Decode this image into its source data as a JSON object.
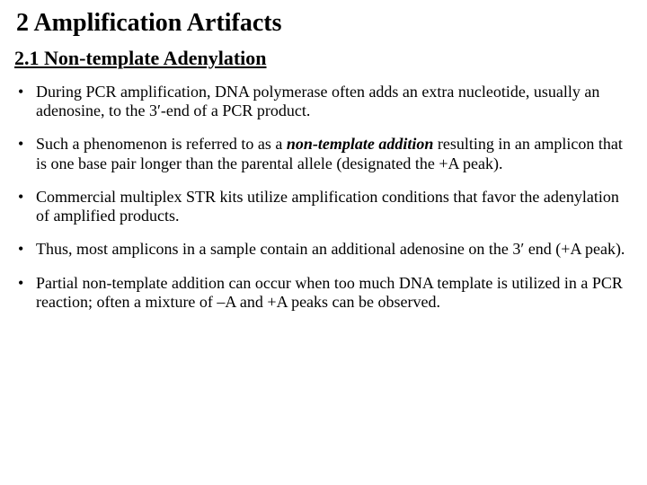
{
  "heading": "2 Amplification Artifacts",
  "subheading": "2.1 Non-template Adenylation",
  "bullets": [
    {
      "segments": [
        {
          "text": "During PCR amplification, DNA polymerase often adds an extra nucleotide, usually an adenosine, to the 3′-end of a PCR product."
        }
      ]
    },
    {
      "segments": [
        {
          "text": "Such a phenomenon is referred to as a "
        },
        {
          "text": "non-template addition",
          "bi": true
        },
        {
          "text": " resulting in an amplicon that is one base pair longer than the parental allele (designated the +A peak)."
        }
      ]
    },
    {
      "segments": [
        {
          "text": "Commercial multiplex STR kits utilize amplification conditions that favor the adenylation of amplified products."
        }
      ]
    },
    {
      "segments": [
        {
          "text": "Thus, most amplicons in a sample contain an additional adenosine on the 3′ end (+A peak)."
        }
      ]
    },
    {
      "segments": [
        {
          "text": "Partial non-template addition can occur when too much DNA template is utilized in a PCR reaction; often a mixture of –A and +A peaks can be observed."
        }
      ]
    }
  ],
  "style": {
    "background_color": "#ffffff",
    "text_color": "#000000",
    "heading_fontsize": 28,
    "subheading_fontsize": 22,
    "body_fontsize": 18,
    "font_family": "Times New Roman"
  }
}
